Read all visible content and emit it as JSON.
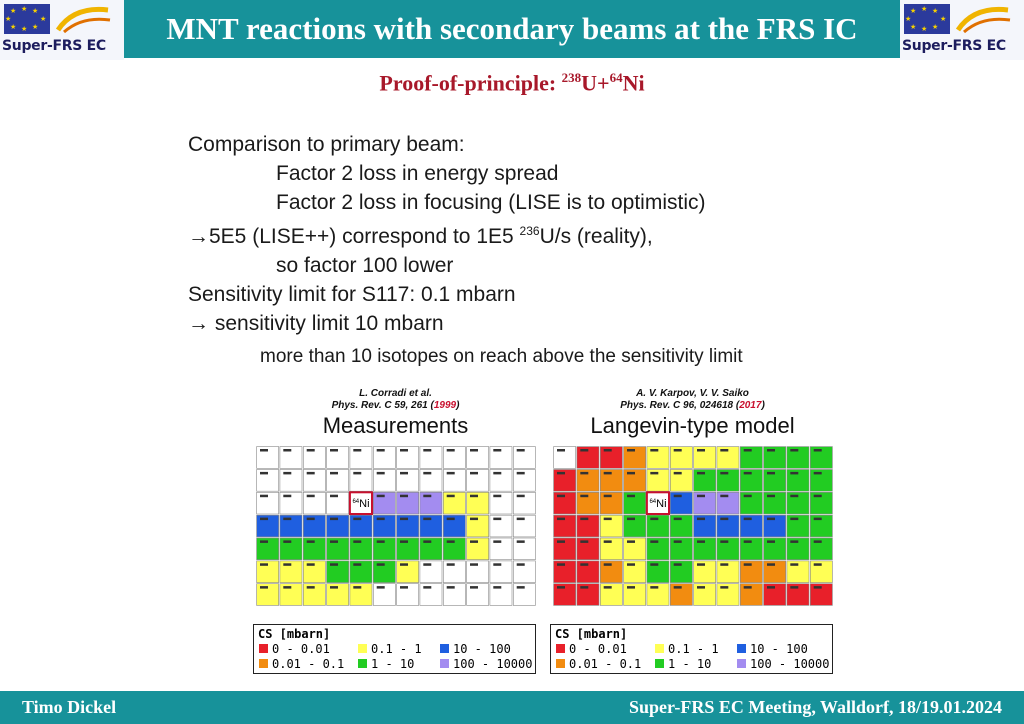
{
  "header": {
    "title": "MNT reactions with secondary beams at the FRS IC",
    "logo_text": "Super-FRS EC"
  },
  "subtitle": {
    "text": "Proof-of-principle: ",
    "sup1": "238",
    "mid": "U+",
    "sup2": "64",
    "end": "Ni"
  },
  "body": {
    "line1": "Comparison to primary beam:",
    "line2": "Factor 2 loss in energy spread",
    "line3": "Factor 2 loss in focusing (LISE is to optimistic)",
    "line4_pre": "5E5 (LISE++) correspond to 1E5 ",
    "line4_sup": "236",
    "line4_post": "U/s (reality),",
    "line5": "so factor 100 lower",
    "line6": "Sensitivity limit for S117: 0.1 mbarn",
    "line7": "sensitivity limit 10 mbarn",
    "arrow": "→"
  },
  "note": "more than 10 isotopes on reach above the sensitivity limit",
  "panels": [
    {
      "authors": "L. Corradi et al.",
      "journal": "Phys. Rev. C 59, 261 (",
      "year": "1999",
      "journal_end": ")",
      "label": "Measurements",
      "center_label": "Ni",
      "center_sup": "64",
      "rows": [
        "wwwwwwwwwwww",
        "wwwwwwwwwwww",
        "wwwwwPPPYYww",
        "BBBBBBBBBYww",
        "GGGGGGGGGYww",
        "YYYGGGYwwwww",
        "YYYYYwwwwwww"
      ]
    },
    {
      "authors": "A. V. Karpov, V. V. Saiko",
      "journal": "Phys. Rev. C 96, 024618 (",
      "year": "2017",
      "journal_end": ")",
      "label": "Langevin-type model",
      "center_label": "Ni",
      "center_sup": "64",
      "rows": [
        "wRROYYYYGGGG",
        "ROOOYYGGGGGG",
        "ROOGGBPPGGGG",
        "RRYGGGBBBBGG",
        "RRYYGGGGGGGG",
        "RROYGGYYOOYY",
        "RRYYYOYYORRR"
      ]
    }
  ],
  "legend": {
    "title": "CS [mbarn]",
    "items": [
      {
        "label": "0 - 0.01",
        "color": "#e8202a"
      },
      {
        "label": "0.01 - 0.1",
        "color": "#f28c10"
      },
      {
        "label": "0.1 - 1",
        "color": "#ffff55"
      },
      {
        "label": "1 - 10",
        "color": "#22cc22"
      },
      {
        "label": "10 - 100",
        "color": "#1f5fe0"
      },
      {
        "label": "100 - 10000",
        "color": "#a38cf0"
      }
    ]
  },
  "footer": {
    "left": "Timo Dickel",
    "right": "Super-FRS EC Meeting, Walldorf, 18/19.01.2024"
  }
}
